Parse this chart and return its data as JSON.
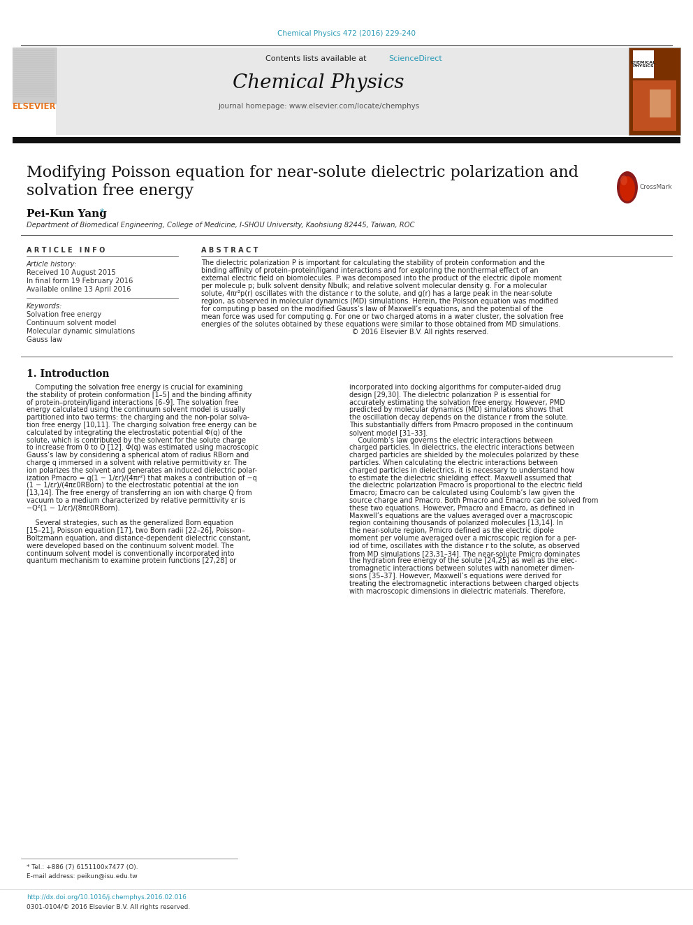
{
  "journal_ref": "Chemical Physics 472 (2016) 229-240",
  "journal_name": "Chemical Physics",
  "journal_homepage": "journal homepage: www.elsevier.com/locate/chemphys",
  "contents_line": "Contents lists available at ",
  "sciencedirect": "ScienceDirect",
  "elsevier_text": "ELSEVIER",
  "paper_title_line1": "Modifying Poisson equation for near-solute dielectric polarization and",
  "paper_title_line2": "solvation free energy",
  "author": "Pei-Kun Yang",
  "affiliation": "Department of Biomedical Engineering, College of Medicine, I-SHOU University, Kaohsiung 82445, Taiwan, ROC",
  "article_info_header": "A R T I C L E   I N F O",
  "abstract_header": "A B S T R A C T",
  "article_history_label": "Article history:",
  "received": "Received 10 August 2015",
  "final_form": "In final form 19 February 2016",
  "available": "Available online 13 April 2016",
  "keywords_label": "Keywords:",
  "keywords": [
    "Solvation free energy",
    "Continuum solvent model",
    "Molecular dynamic simulations",
    "Gauss law"
  ],
  "abstract_lines": [
    "The dielectric polarization P is important for calculating the stability of protein conformation and the",
    "binding affinity of protein–protein/ligand interactions and for exploring the nonthermal effect of an",
    "external electric field on biomolecules. P was decomposed into the product of the electric dipole moment",
    "per molecule p; bulk solvent density Nbulk; and relative solvent molecular density g. For a molecular",
    "solute, 4πr²p(r) oscillates with the distance r to the solute, and g(r) has a large peak in the near-solute",
    "region, as observed in molecular dynamics (MD) simulations. Herein, the Poisson equation was modified",
    "for computing p based on the modified Gauss’s law of Maxwell’s equations, and the potential of the",
    "mean force was used for computing g. For one or two charged atoms in a water cluster, the solvation free",
    "energies of the solutes obtained by these equations were similar to those obtained from MD simulations.",
    "                                                                     © 2016 Elsevier B.V. All rights reserved."
  ],
  "intro_header": "1. Introduction",
  "intro_col1_lines": [
    "    Computing the solvation free energy is crucial for examining",
    "the stability of protein conformation [1–5] and the binding affinity",
    "of protein–protein/ligand interactions [6–9]. The solvation free",
    "energy calculated using the continuum solvent model is usually",
    "partitioned into two terms: the charging and the non-polar solva-",
    "tion free energy [10,11]. The charging solvation free energy can be",
    "calculated by integrating the electrostatic potential Φ(q) of the",
    "solute, which is contributed by the solvent for the solute charge",
    "to increase from 0 to Q [12]. Φ(q) was estimated using macroscopic",
    "Gauss’s law by considering a spherical atom of radius RBorn and",
    "charge q immersed in a solvent with relative permittivity εr. The",
    "ion polarizes the solvent and generates an induced dielectric polar-",
    "ization Pmacro = q(1 − 1/εr)/(4πr²) that makes a contribution of −q",
    "(1 − 1/εr)/(4πε0RBorn) to the electrostatic potential at the ion",
    "[13,14]. The free energy of transferring an ion with charge Q from",
    "vacuum to a medium characterized by relative permittivity εr is",
    "−Q²(1 − 1/εr)/(8πε0RBorn).",
    "",
    "    Several strategies, such as the generalized Born equation",
    "[15–21], Poisson equation [17], two Born radii [22–26], Poisson–",
    "Boltzmann equation, and distance-dependent dielectric constant,",
    "were developed based on the continuum solvent model. The",
    "continuum solvent model is conventionally incorporated into",
    "quantum mechanism to examine protein functions [27,28] or"
  ],
  "intro_col2_lines": [
    "incorporated into docking algorithms for computer-aided drug",
    "design [29,30]. The dielectric polarization P is essential for",
    "accurately estimating the solvation free energy. However, PMD",
    "predicted by molecular dynamics (MD) simulations shows that",
    "the oscillation decay depends on the distance r from the solute.",
    "This substantially differs from Pmacro proposed in the continuum",
    "solvent model [31–33].",
    "    Coulomb’s law governs the electric interactions between",
    "charged particles. In dielectrics, the electric interactions between",
    "charged particles are shielded by the molecules polarized by these",
    "particles. When calculating the electric interactions between",
    "charged particles in dielectrics, it is necessary to understand how",
    "to estimate the dielectric shielding effect. Maxwell assumed that",
    "the dielectric polarization Pmacro is proportional to the electric field",
    "Emacro; Emacro can be calculated using Coulomb’s law given the",
    "source charge and Pmacro. Both Pmacro and Emacro can be solved from",
    "these two equations. However, Pmacro and Emacro, as defined in",
    "Maxwell’s equations are the values averaged over a macroscopic",
    "region containing thousands of polarized molecules [13,14]. In",
    "the near-solute region, Pmicro defined as the electric dipole",
    "moment per volume averaged over a microscopic region for a per-",
    "iod of time, oscillates with the distance r to the solute, as observed",
    "from MD simulations [23,31–34]. The near-solute Pmicro dominates",
    "the hydration free energy of the solute [24,25] as well as the elec-",
    "tromagnetic interactions between solutes with nanometer dimen-",
    "sions [35–37]. However, Maxwell’s equations were derived for",
    "treating the electromagnetic interactions between charged objects",
    "with macroscopic dimensions in dielectric materials. Therefore,"
  ],
  "footnote1": "* Tel.: +886 (7) 6151100x7477 (O).",
  "footnote2": "E-mail address: peikun@isu.edu.tw",
  "doi_text": "http://dx.doi.org/10.1016/j.chemphys.2016.02.016",
  "copyright_footer": "0301-0104/© 2016 Elsevier B.V. All rights reserved.",
  "color_teal": "#2899b5",
  "color_orange": "#e87722",
  "color_dark": "#1a1a1a",
  "bg_header": "#e8e8e8",
  "bg_white": "#ffffff"
}
